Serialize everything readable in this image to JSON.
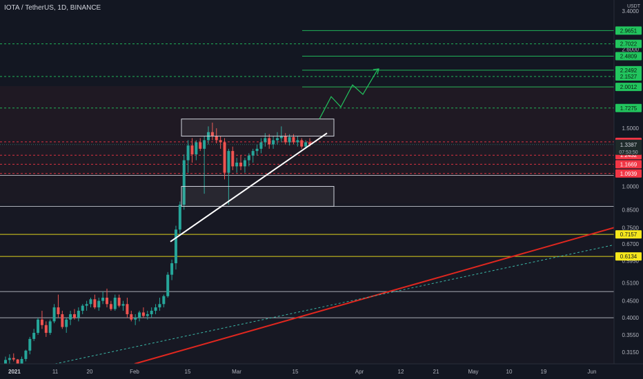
{
  "header": {
    "title": "IOTA / TetherUS, 1D, BINANCE",
    "currency": "USDT"
  },
  "colors": {
    "background": "#131722",
    "up": "#26a69a",
    "down": "#ef5350",
    "green_level": "#22c55e",
    "red_level": "#f23645",
    "yellow_level": "#f5e71c",
    "white_level": "#d1d4dc",
    "trend_red": "#e0271f",
    "trend_teal": "#3bb8a8"
  },
  "chart_data": {
    "type": "candlestick",
    "symbol": "IOTA / TetherUS",
    "interval": "1D",
    "exchange": "BINANCE",
    "y_scale": "log",
    "ylim": [
      0.29,
      3.6
    ],
    "x_ticks": [
      "2021",
      "11",
      "20",
      "Feb",
      "15",
      "Mar",
      "15",
      "Apr",
      "12",
      "21",
      "May",
      "10",
      "19",
      "Jun"
    ],
    "y_ticks": [
      "3.4000",
      "2.6000",
      "1.5000",
      "1.0000",
      "0.8500",
      "0.7500",
      "0.6700",
      "0.5950",
      "0.5100",
      "0.4500",
      "0.4000",
      "0.3550",
      "0.3150"
    ],
    "last_price": "1.3387",
    "countdown": "07:53:50",
    "green_levels": [
      "2.9651",
      "2.7022",
      "2.4809",
      "2.2492",
      "2.1527",
      "2.0012",
      "1.7275"
    ],
    "red_levels": [
      "1.3641",
      "1.2432",
      "1.1669",
      "1.0939"
    ],
    "yellow_levels": [
      "0.7157",
      "0.6134"
    ],
    "white_levels": [
      1.08,
      0.87,
      0.48,
      0.4
    ],
    "candles": [
      [
        0.29,
        0.305,
        0.285,
        0.298
      ],
      [
        0.298,
        0.31,
        0.29,
        0.302
      ],
      [
        0.302,
        0.312,
        0.295,
        0.299
      ],
      [
        0.299,
        0.3,
        0.285,
        0.29
      ],
      [
        0.29,
        0.305,
        0.285,
        0.3
      ],
      [
        0.3,
        0.32,
        0.295,
        0.318
      ],
      [
        0.318,
        0.35,
        0.31,
        0.345
      ],
      [
        0.345,
        0.37,
        0.34,
        0.36
      ],
      [
        0.36,
        0.4,
        0.355,
        0.395
      ],
      [
        0.395,
        0.42,
        0.37,
        0.38
      ],
      [
        0.38,
        0.39,
        0.35,
        0.36
      ],
      [
        0.36,
        0.395,
        0.355,
        0.39
      ],
      [
        0.39,
        0.44,
        0.385,
        0.43
      ],
      [
        0.43,
        0.47,
        0.4,
        0.41
      ],
      [
        0.41,
        0.42,
        0.37,
        0.375
      ],
      [
        0.375,
        0.4,
        0.36,
        0.395
      ],
      [
        0.395,
        0.42,
        0.38,
        0.41
      ],
      [
        0.41,
        0.425,
        0.395,
        0.4
      ],
      [
        0.4,
        0.43,
        0.39,
        0.42
      ],
      [
        0.42,
        0.44,
        0.41,
        0.435
      ],
      [
        0.435,
        0.45,
        0.42,
        0.44
      ],
      [
        0.44,
        0.46,
        0.43,
        0.455
      ],
      [
        0.455,
        0.47,
        0.425,
        0.43
      ],
      [
        0.43,
        0.46,
        0.42,
        0.45
      ],
      [
        0.45,
        0.48,
        0.44,
        0.46
      ],
      [
        0.46,
        0.49,
        0.43,
        0.44
      ],
      [
        0.44,
        0.45,
        0.42,
        0.425
      ],
      [
        0.425,
        0.47,
        0.42,
        0.46
      ],
      [
        0.46,
        0.47,
        0.43,
        0.435
      ],
      [
        0.435,
        0.45,
        0.42,
        0.44
      ],
      [
        0.44,
        0.46,
        0.4,
        0.41
      ],
      [
        0.41,
        0.42,
        0.39,
        0.395
      ],
      [
        0.395,
        0.41,
        0.38,
        0.4
      ],
      [
        0.4,
        0.42,
        0.39,
        0.415
      ],
      [
        0.415,
        0.43,
        0.4,
        0.405
      ],
      [
        0.405,
        0.42,
        0.395,
        0.41
      ],
      [
        0.41,
        0.43,
        0.4,
        0.42
      ],
      [
        0.42,
        0.44,
        0.41,
        0.43
      ],
      [
        0.43,
        0.46,
        0.42,
        0.44
      ],
      [
        0.44,
        0.47,
        0.43,
        0.465
      ],
      [
        0.465,
        0.55,
        0.46,
        0.54
      ],
      [
        0.54,
        0.6,
        0.52,
        0.585
      ],
      [
        0.585,
        0.76,
        0.56,
        0.74
      ],
      [
        0.74,
        0.9,
        0.72,
        0.88
      ],
      [
        0.88,
        1.25,
        0.85,
        1.2
      ],
      [
        1.2,
        1.38,
        1.1,
        1.33
      ],
      [
        1.33,
        1.4,
        1.18,
        1.25
      ],
      [
        1.25,
        1.38,
        1.2,
        1.36
      ],
      [
        1.36,
        1.4,
        1.28,
        1.3
      ],
      [
        1.3,
        1.42,
        0.95,
        1.38
      ],
      [
        1.38,
        1.52,
        1.34,
        1.46
      ],
      [
        1.46,
        1.56,
        1.38,
        1.42
      ],
      [
        1.42,
        1.5,
        1.35,
        1.38
      ],
      [
        1.38,
        1.42,
        1.3,
        1.36
      ],
      [
        1.36,
        1.4,
        1.05,
        1.1
      ],
      [
        1.1,
        1.3,
        0.88,
        1.28
      ],
      [
        1.28,
        1.32,
        1.12,
        1.15
      ],
      [
        1.15,
        1.22,
        1.1,
        1.18
      ],
      [
        1.18,
        1.24,
        1.12,
        1.15
      ],
      [
        1.15,
        1.22,
        1.1,
        1.2
      ],
      [
        1.2,
        1.26,
        1.15,
        1.24
      ],
      [
        1.24,
        1.3,
        1.18,
        1.28
      ],
      [
        1.28,
        1.34,
        1.24,
        1.3
      ],
      [
        1.3,
        1.4,
        1.26,
        1.36
      ],
      [
        1.36,
        1.45,
        1.32,
        1.4
      ],
      [
        1.4,
        1.44,
        1.3,
        1.34
      ],
      [
        1.34,
        1.42,
        1.3,
        1.38
      ],
      [
        1.38,
        1.46,
        1.34,
        1.4
      ],
      [
        1.4,
        1.52,
        1.36,
        1.42
      ],
      [
        1.42,
        1.45,
        1.34,
        1.36
      ],
      [
        1.36,
        1.44,
        1.33,
        1.41
      ],
      [
        1.41,
        1.44,
        1.34,
        1.36
      ],
      [
        1.36,
        1.42,
        1.32,
        1.38
      ],
      [
        1.38,
        1.4,
        1.3,
        1.32
      ],
      [
        1.32,
        1.38,
        1.3,
        1.36
      ],
      [
        1.36,
        1.4,
        1.32,
        1.34
      ]
    ],
    "annotations": {
      "boxes": [
        {
          "y1": 1.42,
          "y2": 1.6
        },
        {
          "y1": 0.87,
          "y2": 1.0
        }
      ],
      "trendline": {
        "from": 0.68,
        "to": 1.45
      }
    }
  }
}
